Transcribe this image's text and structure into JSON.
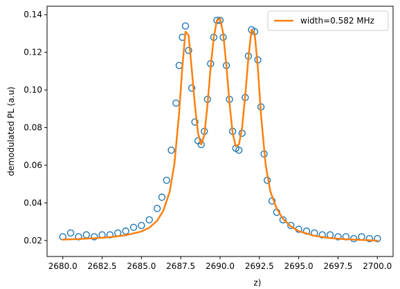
{
  "chart_data": {
    "type": "scatter",
    "title": "",
    "xlabel": "z)",
    "ylabel": "demodulated PL (a.u)",
    "xlim": [
      2679.0,
      2701.0
    ],
    "ylim": [
      0.0115,
      0.1445
    ],
    "x_ticks": [
      2680.0,
      2682.5,
      2685.0,
      2687.5,
      2690.0,
      2692.5,
      2695.0,
      2697.5,
      2700.0
    ],
    "x_tick_labels": [
      "2680.0",
      "2682.5",
      "2685.0",
      "2687.5",
      "2690.0",
      "2692.5",
      "2695.0",
      "2697.5",
      "2700.0"
    ],
    "y_ticks": [
      0.02,
      0.04,
      0.06,
      0.08,
      0.1,
      0.12,
      0.14
    ],
    "y_tick_labels": [
      "0.02",
      "0.04",
      "0.06",
      "0.08",
      "0.10",
      "0.12",
      "0.14"
    ],
    "grid": false,
    "legend_position": "top-right",
    "series": [
      {
        "kind": "markers",
        "marker": "open-circle",
        "color": "#1f77b4",
        "x": [
          2680.0,
          2680.5,
          2681.0,
          2681.5,
          2682.0,
          2682.5,
          2683.0,
          2683.5,
          2684.0,
          2684.5,
          2685.0,
          2685.5,
          2686.0,
          2686.3,
          2686.6,
          2686.9,
          2687.2,
          2687.4,
          2687.6,
          2687.8,
          2688.0,
          2688.2,
          2688.4,
          2688.6,
          2688.8,
          2689.0,
          2689.2,
          2689.4,
          2689.6,
          2689.8,
          2690.0,
          2690.2,
          2690.4,
          2690.6,
          2690.8,
          2691.0,
          2691.2,
          2691.4,
          2691.6,
          2691.8,
          2692.0,
          2692.2,
          2692.4,
          2692.6,
          2692.8,
          2693.0,
          2693.3,
          2693.6,
          2694.0,
          2694.5,
          2695.0,
          2695.5,
          2696.0,
          2696.5,
          2697.0,
          2697.5,
          2698.0,
          2698.5,
          2699.0,
          2699.5,
          2700.0
        ],
        "y": [
          0.022,
          0.024,
          0.022,
          0.023,
          0.022,
          0.023,
          0.023,
          0.024,
          0.025,
          0.027,
          0.028,
          0.031,
          0.037,
          0.043,
          0.052,
          0.068,
          0.093,
          0.113,
          0.128,
          0.134,
          0.121,
          0.101,
          0.083,
          0.073,
          0.071,
          0.078,
          0.095,
          0.114,
          0.128,
          0.137,
          0.137,
          0.128,
          0.113,
          0.095,
          0.078,
          0.069,
          0.068,
          0.077,
          0.096,
          0.118,
          0.132,
          0.131,
          0.116,
          0.091,
          0.066,
          0.052,
          0.041,
          0.035,
          0.031,
          0.028,
          0.026,
          0.025,
          0.024,
          0.023,
          0.023,
          0.022,
          0.022,
          0.021,
          0.022,
          0.021,
          0.021
        ]
      },
      {
        "kind": "line",
        "name": "width=0.582 MHz",
        "color": "#ff7f0e",
        "x": [
          2680.0,
          2681.0,
          2682.0,
          2683.0,
          2684.0,
          2685.0,
          2685.5,
          2686.0,
          2686.4,
          2686.8,
          2687.1,
          2687.4,
          2687.6,
          2687.8,
          2688.0,
          2688.2,
          2688.4,
          2688.6,
          2688.8,
          2689.0,
          2689.2,
          2689.4,
          2689.6,
          2689.8,
          2690.0,
          2690.2,
          2690.4,
          2690.6,
          2690.8,
          2691.0,
          2691.2,
          2691.4,
          2691.6,
          2691.8,
          2692.0,
          2692.2,
          2692.4,
          2692.6,
          2692.9,
          2693.2,
          2693.6,
          2694.0,
          2694.5,
          2695.0,
          2696.0,
          2697.0,
          2698.0,
          2699.0,
          2700.0
        ],
        "y": [
          0.0205,
          0.0208,
          0.0212,
          0.0218,
          0.0228,
          0.0248,
          0.0268,
          0.0305,
          0.036,
          0.046,
          0.061,
          0.088,
          0.112,
          0.131,
          0.129,
          0.111,
          0.092,
          0.077,
          0.071,
          0.076,
          0.092,
          0.112,
          0.128,
          0.137,
          0.138,
          0.13,
          0.113,
          0.093,
          0.077,
          0.07,
          0.071,
          0.08,
          0.097,
          0.117,
          0.132,
          0.13,
          0.112,
          0.087,
          0.06,
          0.046,
          0.037,
          0.0315,
          0.0275,
          0.025,
          0.0225,
          0.0213,
          0.0207,
          0.0203,
          0.0199
        ]
      }
    ]
  }
}
